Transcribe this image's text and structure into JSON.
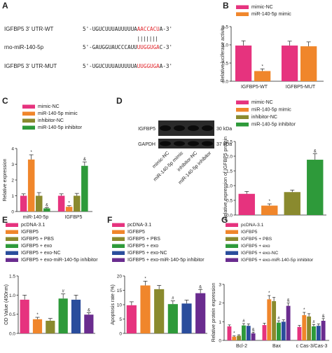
{
  "colors": {
    "pink": "#e6337e",
    "orange": "#f0862b",
    "olive": "#8a8a2e",
    "green": "#2e9a3a",
    "blue": "#2a4d9c",
    "purple": "#6a2c8f",
    "seq_red": "#e0252b",
    "text": "#222222"
  },
  "panel_letters": [
    "A",
    "B",
    "C",
    "D",
    "E",
    "F",
    "G"
  ],
  "sequences": [
    {
      "label": "IGFBP5 3' UTR-WT",
      "prefix": "5'-UGUCUUUAUUUUUA",
      "highlight": "AACCACU",
      "suffix": "A-3'"
    },
    {
      "label": "rno-miR-140-5p",
      "prefix": "5'-GAUGGUAUCCCAUU",
      "highlight": "UUGGUGA",
      "suffix": "C-3'"
    },
    {
      "label": "IGFBP5 3' UTR-MUT",
      "prefix": "5'-UGUCUUUAUUUUUA",
      "highlight": "UUGGUGA",
      "suffix": "A-3'"
    }
  ],
  "pairing_bars": "| | | | | | |",
  "western_blot": {
    "bands": [
      {
        "name": "IGFBP5",
        "size": "30 kDa"
      },
      {
        "name": "GAPDH",
        "size": "37 kDa"
      }
    ],
    "lanes": [
      "mimic-NC",
      "miR-140-5p mimic",
      "inhibitor-NC",
      "miR-140-5p inhibitor"
    ]
  },
  "chart_data": [
    {
      "panel": "B",
      "type": "bar",
      "categories": [
        "IGFBP5-WT",
        "IGFBP5-MUT"
      ],
      "series": [
        {
          "name": "mimic-NC",
          "values": [
            0.98,
            0.98
          ],
          "errors": [
            0.13,
            0.12
          ],
          "color": "#e6337e"
        },
        {
          "name": "miR-140-5p mimic",
          "values": [
            0.28,
            0.96
          ],
          "errors": [
            0.06,
            0.12
          ],
          "color": "#f0862b"
        }
      ],
      "ylabel": "Relative luciferase activity",
      "ylim": [
        0,
        1.5
      ],
      "yticks": [
        0,
        0.5,
        1.0,
        1.5
      ],
      "ytick_labels": [
        "0.0",
        "0.5",
        "1.0",
        "1.5"
      ],
      "annotations": [
        {
          "category": 0,
          "series": 1,
          "text": "*"
        }
      ],
      "legend": "top-right"
    },
    {
      "panel": "C",
      "type": "bar",
      "categories": [
        "miR-140-5p",
        "IGFBP5"
      ],
      "series": [
        {
          "name": "mimic-NC",
          "values": [
            1.0,
            1.0
          ],
          "errors": [
            0.12,
            0.12
          ],
          "color": "#e6337e"
        },
        {
          "name": "miR-140-5p mimic",
          "values": [
            3.3,
            0.3
          ],
          "errors": [
            0.3,
            0.07
          ],
          "color": "#f0862b"
        },
        {
          "name": "inhibitor-NC",
          "values": [
            1.0,
            1.0
          ],
          "errors": [
            0.2,
            0.15
          ],
          "color": "#8a8a2e"
        },
        {
          "name": "miR-140-5p inhibitor",
          "values": [
            0.2,
            2.9
          ],
          "errors": [
            0.05,
            0.25
          ],
          "color": "#2e9a3a"
        }
      ],
      "ylabel": "Relative expression",
      "ylim": [
        0,
        4
      ],
      "yticks": [
        0,
        1,
        2,
        3,
        4
      ],
      "ytick_labels": [
        "0",
        "1",
        "2",
        "3",
        "4"
      ],
      "annotations": [
        {
          "category": 0,
          "series": 1,
          "text": "*"
        },
        {
          "category": 0,
          "series": 3,
          "text": "&"
        },
        {
          "category": 1,
          "series": 1,
          "text": "*"
        },
        {
          "category": 1,
          "series": 3,
          "text": "&"
        }
      ],
      "legend": "top"
    },
    {
      "panel": "D",
      "type": "bar",
      "categories": [
        "mimic-NC",
        "miR-140-5p mimic",
        "inhibitor-NC",
        "miR-140-5p inhibitor"
      ],
      "values": [
        0.72,
        0.32,
        0.78,
        1.88
      ],
      "errors": [
        0.08,
        0.06,
        0.07,
        0.2
      ],
      "colors": [
        "#e6337e",
        "#f0862b",
        "#8a8a2e",
        "#2e9a3a"
      ],
      "ylabel": "Relative expression of IGFBP5 protein",
      "ylim": [
        0,
        2.5
      ],
      "yticks": [
        0,
        0.5,
        1.0,
        1.5,
        2.0,
        2.5
      ],
      "ytick_labels": [
        "0.0",
        "0.5",
        "1.0",
        "1.5",
        "2.0",
        "2.5"
      ],
      "annotations": [
        {
          "index": 1,
          "text": "*"
        },
        {
          "index": 3,
          "text": "&"
        }
      ],
      "legend": "top"
    },
    {
      "panel": "E",
      "type": "bar",
      "categories": [
        "pcDNA-3.1",
        "IGFBP5",
        "IGFBP5 + PBS",
        "IGFBP5 + exo",
        "IGFBP5 + exo-NC",
        "IGFBP5 + exo-miR-140-5p inhibitor"
      ],
      "values": [
        0.88,
        0.37,
        0.33,
        0.91,
        0.88,
        0.49
      ],
      "errors": [
        0.12,
        0.05,
        0.06,
        0.12,
        0.12,
        0.05
      ],
      "colors": [
        "#e6337e",
        "#f0862b",
        "#8a8a2e",
        "#2e9a3a",
        "#2a4d9c",
        "#6a2c8f"
      ],
      "ylabel": "OD Value (450nm)",
      "ylim": [
        0,
        1.5
      ],
      "yticks": [
        0,
        0.5,
        1.0,
        1.5
      ],
      "ytick_labels": [
        "0.0",
        "0.5",
        "1.0",
        "1.5"
      ],
      "annotations": [
        {
          "index": 1,
          "text": "*"
        },
        {
          "index": 3,
          "text": "#"
        },
        {
          "index": 5,
          "text": "&"
        }
      ],
      "legend": "top"
    },
    {
      "panel": "F",
      "type": "bar",
      "categories": [
        "pcDNA-3.1",
        "IGFBP5",
        "IGFBP5 + PBS",
        "IGFBP5 + exo",
        "IGFBP5 + exo-NC",
        "IGFBP5 + exo-miR-140-5p inhibitor"
      ],
      "values": [
        9.8,
        16.7,
        15.4,
        10.2,
        10.4,
        14.0
      ],
      "errors": [
        1.2,
        1.5,
        1.3,
        1.1,
        1.2,
        1.3
      ],
      "colors": [
        "#e6337e",
        "#f0862b",
        "#8a8a2e",
        "#2e9a3a",
        "#2a4d9c",
        "#6a2c8f"
      ],
      "ylabel": "Apoptosis rate (%)",
      "ylim": [
        0,
        20
      ],
      "yticks": [
        0,
        5,
        10,
        15,
        20
      ],
      "ytick_labels": [
        "0",
        "5",
        "10",
        "15",
        "20"
      ],
      "annotations": [
        {
          "index": 1,
          "text": "*"
        },
        {
          "index": 3,
          "text": "#"
        },
        {
          "index": 5,
          "text": "&"
        }
      ],
      "legend": "top"
    },
    {
      "panel": "G",
      "type": "bar",
      "categories": [
        "Bcl-2",
        "Bax",
        "c Cas-3/Cas-3"
      ],
      "series": [
        {
          "name": "pcDNA-3.1",
          "values": [
            0.75,
            0.82,
            0.72
          ],
          "errors": [
            0.08,
            0.1,
            0.08
          ],
          "color": "#e6337e"
        },
        {
          "name": "IGFBP5",
          "values": [
            0.2,
            2.2,
            1.35
          ],
          "errors": [
            0.04,
            0.2,
            0.15
          ],
          "color": "#f0862b"
        },
        {
          "name": "IGFBP5 + PBS",
          "values": [
            0.25,
            2.1,
            1.28
          ],
          "errors": [
            0.05,
            0.2,
            0.15
          ],
          "color": "#8a8a2e"
        },
        {
          "name": "IGFBP5 + exo",
          "values": [
            0.8,
            0.95,
            0.75
          ],
          "errors": [
            0.1,
            0.1,
            0.1
          ],
          "color": "#2e9a3a"
        },
        {
          "name": "IGFBP5 + exo-NC",
          "values": [
            0.78,
            1.0,
            0.78
          ],
          "errors": [
            0.1,
            0.1,
            0.1
          ],
          "color": "#2a4d9c"
        },
        {
          "name": "IGFBP5 + exo-miR-140-5p inhibitor",
          "values": [
            0.38,
            1.85,
            1.05
          ],
          "errors": [
            0.06,
            0.15,
            0.12
          ],
          "color": "#6a2c8f"
        }
      ],
      "ylabel": "Relative protein expression",
      "ylim": [
        0,
        3
      ],
      "yticks": [
        0,
        1,
        2,
        3
      ],
      "ytick_labels": [
        "0",
        "1",
        "2",
        "3"
      ],
      "annotations": [
        {
          "category": 0,
          "series": 1,
          "text": "*"
        },
        {
          "category": 0,
          "series": 3,
          "text": "#"
        },
        {
          "category": 0,
          "series": 5,
          "text": "&"
        },
        {
          "category": 1,
          "series": 1,
          "text": "*"
        },
        {
          "category": 1,
          "series": 3,
          "text": "#"
        },
        {
          "category": 1,
          "series": 5,
          "text": "&"
        },
        {
          "category": 2,
          "series": 1,
          "text": "*"
        },
        {
          "category": 2,
          "series": 3,
          "text": "#"
        },
        {
          "category": 2,
          "series": 5,
          "text": "&"
        }
      ],
      "legend": "top"
    }
  ]
}
